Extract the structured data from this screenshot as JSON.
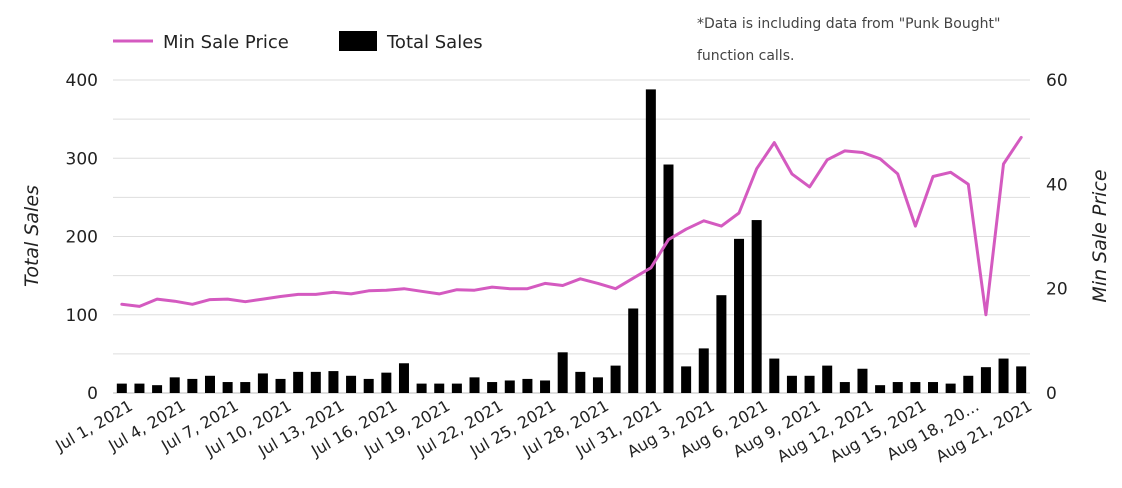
{
  "chart_data": {
    "type": "bar",
    "note_lines": [
      "*Data is including data from \"Punk Bought\"",
      "function calls."
    ],
    "left_axis": {
      "label": "Total Sales",
      "range": [
        0,
        400
      ],
      "ticks": [
        "0",
        "100",
        "200",
        "300",
        "400"
      ]
    },
    "right_axis": {
      "label": "Min Sale Price",
      "range": [
        0,
        60
      ],
      "ticks": [
        "0",
        "20",
        "40",
        "60"
      ]
    },
    "grid": true,
    "legend_position": "top-left",
    "x_tick_labels": [
      "Jul 1, 2021",
      "Jul 4, 2021",
      "Jul 7, 2021",
      "Jul 10, 2021",
      "Jul 13, 2021",
      "Jul 16, 2021",
      "Jul 19, 2021",
      "Jul 22, 2021",
      "Jul 25, 2021",
      "Jul 28, 2021",
      "Jul 31, 2021",
      "Aug 3, 2021",
      "Aug 6, 2021",
      "Aug 9, 2021",
      "Aug 12, 2021",
      "Aug 15, 2021",
      "Aug 18, 20…",
      "Aug 21, 2021"
    ],
    "series": [
      {
        "name": "Total Sales",
        "type": "bar",
        "axis": "left",
        "color": "#000000",
        "values": [
          12,
          12,
          10,
          20,
          18,
          22,
          14,
          14,
          25,
          18,
          27,
          27,
          28,
          22,
          18,
          26,
          38,
          12,
          12,
          12,
          20,
          14,
          16,
          18,
          16,
          52,
          27,
          20,
          35,
          108,
          388,
          292,
          34,
          57,
          125,
          197,
          221,
          44,
          22,
          22,
          35,
          14,
          31,
          10,
          14,
          14,
          14,
          12,
          22,
          33,
          44,
          34
        ]
      },
      {
        "name": "Min Sale Price",
        "type": "line",
        "axis": "right",
        "color": "#d45ac0",
        "values": [
          17.0,
          16.6,
          18.0,
          17.6,
          17.0,
          17.9,
          18.0,
          17.5,
          18.0,
          18.5,
          18.9,
          18.9,
          19.3,
          19.0,
          19.6,
          19.7,
          20.0,
          19.5,
          19.0,
          19.8,
          19.7,
          20.3,
          20.0,
          20.0,
          21.0,
          20.6,
          21.9,
          21.0,
          20.0,
          22.0,
          24.0,
          29.4,
          31.4,
          33.0,
          32.0,
          34.5,
          43.0,
          48.0,
          42.0,
          39.5,
          44.7,
          46.4,
          46.1,
          44.9,
          42.0,
          32.0,
          41.5,
          42.3,
          40.0,
          15.0,
          43.9,
          49.0
        ]
      }
    ]
  }
}
